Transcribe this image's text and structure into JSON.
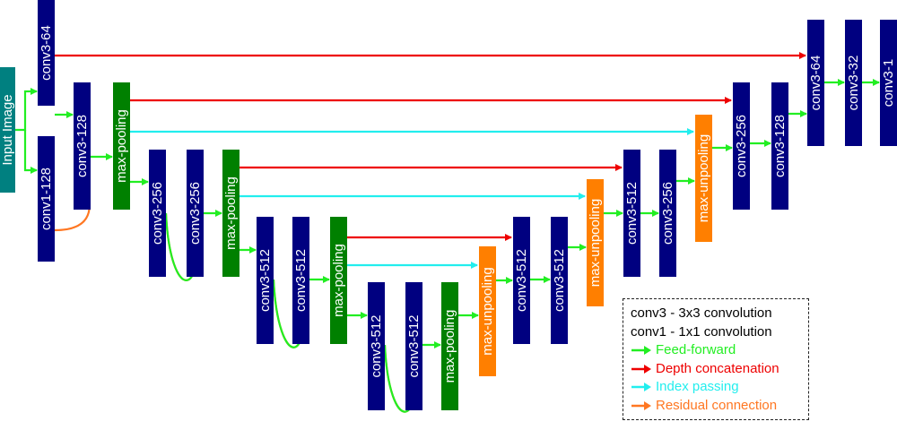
{
  "colors": {
    "conv": "#000080",
    "pool": "#008000",
    "unpool": "#ff7f00",
    "input": "#008080",
    "feed_forward": "#22ee22",
    "depth_concat": "#ee0000",
    "index_pass": "#22eeee",
    "residual": "#ff7722"
  },
  "blocks": [
    {
      "id": "input",
      "label": "Input Image",
      "kind": "input"
    },
    {
      "id": "e1a",
      "label": "conv3-64",
      "kind": "conv"
    },
    {
      "id": "e1b",
      "label": "conv1-128",
      "kind": "conv"
    },
    {
      "id": "e2a",
      "label": "conv3-128",
      "kind": "conv"
    },
    {
      "id": "p1",
      "label": "max-pooling",
      "kind": "pool"
    },
    {
      "id": "e3a",
      "label": "conv3-256",
      "kind": "conv"
    },
    {
      "id": "e3b",
      "label": "conv3-256",
      "kind": "conv"
    },
    {
      "id": "p2",
      "label": "max-pooling",
      "kind": "pool"
    },
    {
      "id": "e4a",
      "label": "conv3-512",
      "kind": "conv"
    },
    {
      "id": "e4b",
      "label": "conv3-512",
      "kind": "conv"
    },
    {
      "id": "p3",
      "label": "max-pooling",
      "kind": "pool"
    },
    {
      "id": "e5a",
      "label": "conv3-512",
      "kind": "conv"
    },
    {
      "id": "e5b",
      "label": "conv3-512",
      "kind": "conv"
    },
    {
      "id": "p4",
      "label": "max-pooling",
      "kind": "pool"
    },
    {
      "id": "u1",
      "label": "max-unpooling",
      "kind": "unpool"
    },
    {
      "id": "d4a",
      "label": "conv3-512",
      "kind": "conv"
    },
    {
      "id": "d4b",
      "label": "conv3-512",
      "kind": "conv"
    },
    {
      "id": "u2",
      "label": "max-unpooling",
      "kind": "unpool"
    },
    {
      "id": "d3a",
      "label": "conv3-512",
      "kind": "conv"
    },
    {
      "id": "d3b",
      "label": "conv3-256",
      "kind": "conv"
    },
    {
      "id": "u3",
      "label": "max-unpooling",
      "kind": "unpool"
    },
    {
      "id": "d2a",
      "label": "conv3-256",
      "kind": "conv"
    },
    {
      "id": "d2b",
      "label": "conv3-128",
      "kind": "conv"
    },
    {
      "id": "d1a",
      "label": "conv3-64",
      "kind": "conv"
    },
    {
      "id": "d1b",
      "label": "conv3-32",
      "kind": "conv"
    },
    {
      "id": "d1c",
      "label": "conv3-1",
      "kind": "conv"
    }
  ],
  "connections": [
    {
      "from": "input",
      "to": "e1a",
      "type": "feed_forward"
    },
    {
      "from": "input",
      "to": "e1b",
      "type": "feed_forward"
    },
    {
      "from": "e1a",
      "to": "e2a",
      "type": "feed_forward"
    },
    {
      "from": "e2a",
      "to": "p1",
      "type": "feed_forward"
    },
    {
      "from": "e1b",
      "to": "e2a",
      "type": "residual"
    },
    {
      "from": "p1",
      "to": "e3a",
      "type": "feed_forward"
    },
    {
      "from": "e3a",
      "to": "e3b",
      "type": "feed_forward"
    },
    {
      "from": "e3b",
      "to": "p2",
      "type": "feed_forward"
    },
    {
      "from": "e3a",
      "to": "e3b",
      "type": "residual"
    },
    {
      "from": "p2",
      "to": "e4a",
      "type": "feed_forward"
    },
    {
      "from": "e4a",
      "to": "e4b",
      "type": "feed_forward"
    },
    {
      "from": "e4b",
      "to": "p3",
      "type": "feed_forward"
    },
    {
      "from": "e4a",
      "to": "e4b",
      "type": "residual"
    },
    {
      "from": "p3",
      "to": "e5a",
      "type": "feed_forward"
    },
    {
      "from": "e5a",
      "to": "e5b",
      "type": "feed_forward"
    },
    {
      "from": "e5b",
      "to": "p4",
      "type": "feed_forward"
    },
    {
      "from": "e5a",
      "to": "e5b",
      "type": "residual"
    },
    {
      "from": "p4",
      "to": "u1",
      "type": "feed_forward"
    },
    {
      "from": "u1",
      "to": "d4a",
      "type": "feed_forward"
    },
    {
      "from": "d4a",
      "to": "d4b",
      "type": "feed_forward"
    },
    {
      "from": "d4b",
      "to": "u2",
      "type": "feed_forward"
    },
    {
      "from": "u2",
      "to": "d3a",
      "type": "feed_forward"
    },
    {
      "from": "d3a",
      "to": "d3b",
      "type": "feed_forward"
    },
    {
      "from": "d3b",
      "to": "u3",
      "type": "feed_forward"
    },
    {
      "from": "u3",
      "to": "d2a",
      "type": "feed_forward"
    },
    {
      "from": "d2a",
      "to": "d2b",
      "type": "feed_forward"
    },
    {
      "from": "d2b",
      "to": "d1a",
      "type": "feed_forward"
    },
    {
      "from": "d1a",
      "to": "d1b",
      "type": "feed_forward"
    },
    {
      "from": "d1b",
      "to": "d1c",
      "type": "feed_forward"
    },
    {
      "from": "e1a",
      "to": "d1a",
      "type": "depth_concat"
    },
    {
      "from": "p1",
      "to": "d2a",
      "type": "depth_concat"
    },
    {
      "from": "p2",
      "to": "d3a",
      "type": "depth_concat"
    },
    {
      "from": "p3",
      "to": "d4a",
      "type": "depth_concat"
    },
    {
      "from": "p1",
      "to": "u3",
      "type": "index_pass"
    },
    {
      "from": "p2",
      "to": "u2",
      "type": "index_pass"
    },
    {
      "from": "p3",
      "to": "u1",
      "type": "index_pass"
    }
  ],
  "legend": {
    "conv3": "conv3 - 3x3 convolution",
    "conv1": "conv1 - 1x1 convolution",
    "feed_forward": "Feed-forward",
    "depth_concat": "Depth concatenation",
    "index_pass": "Index passing",
    "residual": "Residual connection"
  }
}
